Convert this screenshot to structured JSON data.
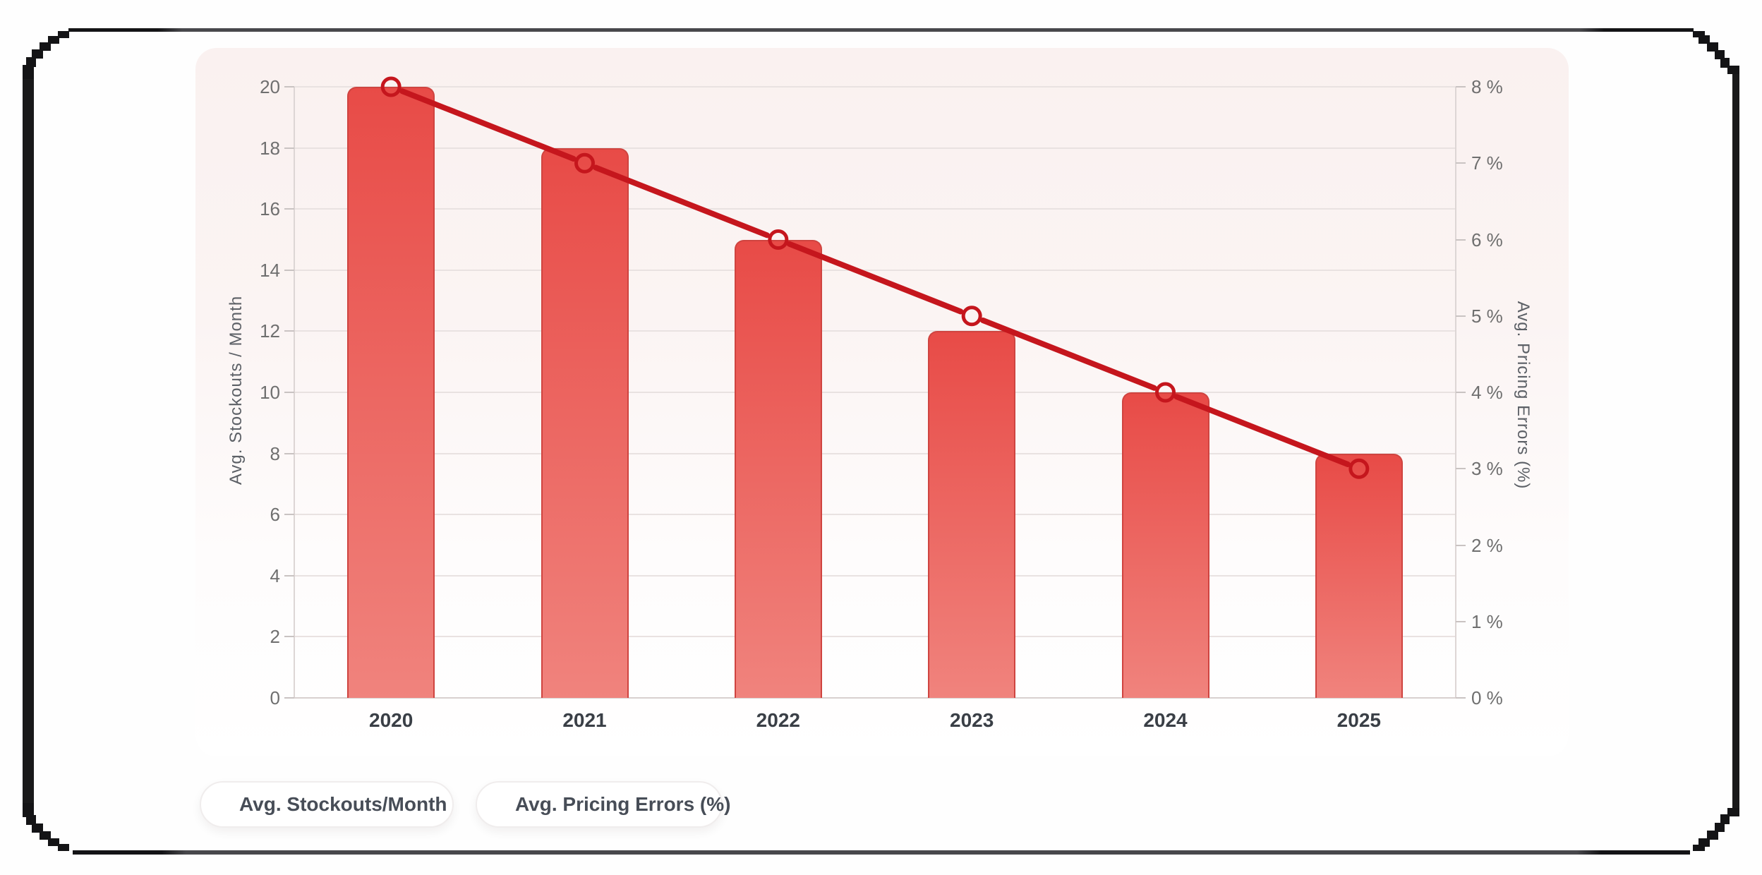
{
  "window": {
    "frame_color": "#141416",
    "frame_mid_color": "#48484c",
    "background": "#fefefe"
  },
  "card": {
    "bg_top": "#faf1f0",
    "bg_bottom": "#ffffff"
  },
  "chart_data": {
    "type": "combo",
    "categories": [
      "2020",
      "2021",
      "2022",
      "2023",
      "2024",
      "2025"
    ],
    "series": [
      {
        "name": "Avg. Stockouts/Month",
        "type": "bar",
        "axis": "left",
        "values": [
          20,
          18,
          15,
          12,
          10,
          8
        ],
        "color_top": "#e84b47",
        "color_bottom": "#f0837d",
        "border_color": "#cf4440"
      },
      {
        "name": "Avg. Pricing Errors (%)",
        "type": "line",
        "axis": "right",
        "values": [
          8,
          7,
          6,
          5,
          4,
          3
        ],
        "color": "#c5161d",
        "marker": "hollow-circle"
      }
    ],
    "left_axis": {
      "title": "Avg. Stockouts / Month",
      "min": 0,
      "max": 20,
      "tick_step": 2,
      "tick_labels": [
        "0",
        "2",
        "4",
        "6",
        "8",
        "10",
        "12",
        "14",
        "16",
        "18",
        "20"
      ]
    },
    "right_axis": {
      "title": "Avg. Pricing Errors (%)",
      "min": 0,
      "max": 8,
      "tick_step": 1,
      "tick_labels": [
        "0 %",
        "1 %",
        "2 %",
        "3 %",
        "4 %",
        "5 %",
        "6 %",
        "7 %",
        "8 %"
      ]
    },
    "x_axis": {
      "labels": [
        "2020",
        "2021",
        "2022",
        "2023",
        "2024",
        "2025"
      ]
    },
    "grid": true,
    "legend_position": "bottom-left"
  },
  "legend": {
    "items": [
      {
        "label": "Avg. Stockouts/Month",
        "swatch": "rounded-square",
        "color": "#e23c40"
      },
      {
        "label": "Avg. Pricing Errors (%)",
        "swatch": "circle",
        "color": "#bc161b"
      }
    ]
  }
}
